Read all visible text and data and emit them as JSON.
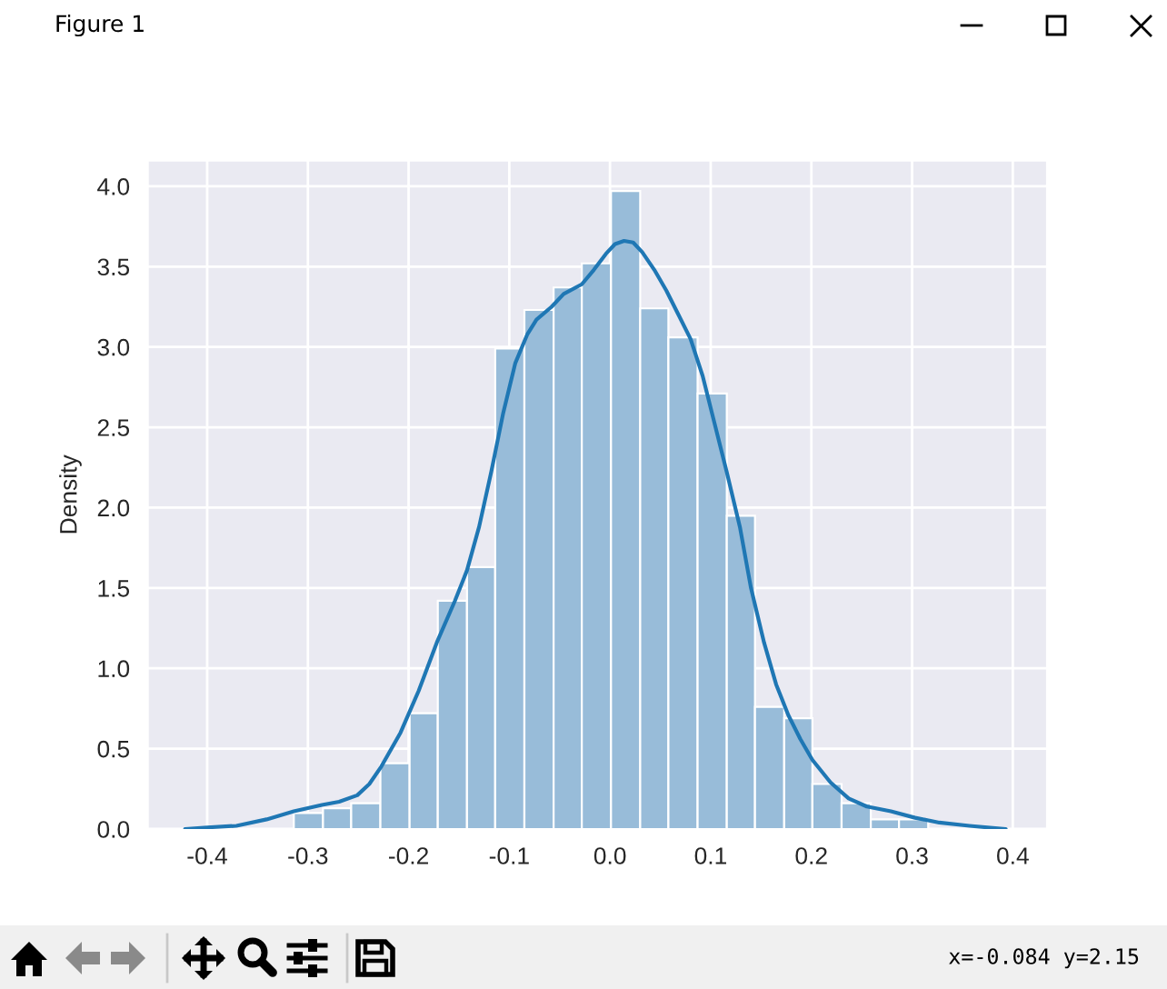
{
  "chart_data": {
    "type": "histogram",
    "ylabel": "Density",
    "bins": [
      -0.314,
      -0.285,
      -0.257,
      -0.228,
      -0.199,
      -0.171,
      -0.142,
      -0.114,
      -0.085,
      -0.056,
      -0.028,
      0.001,
      0.03,
      0.058,
      0.087,
      0.116,
      0.144,
      0.173,
      0.201,
      0.23,
      0.259,
      0.287,
      0.316
    ],
    "values": [
      0.1,
      0.13,
      0.16,
      0.41,
      0.72,
      1.42,
      1.63,
      2.99,
      3.23,
      3.37,
      3.52,
      3.97,
      3.24,
      3.06,
      2.71,
      1.95,
      0.76,
      0.69,
      0.28,
      0.16,
      0.06,
      0.06
    ],
    "color": "#98bcd9",
    "series": [
      {
        "type": "line",
        "color": "#1f77b4",
        "x": [
          -0.422,
          -0.4,
          -0.371,
          -0.341,
          -0.314,
          -0.286,
          -0.269,
          -0.251,
          -0.239,
          -0.227,
          -0.208,
          -0.19,
          -0.172,
          -0.154,
          -0.142,
          -0.13,
          -0.118,
          -0.106,
          -0.094,
          -0.082,
          -0.073,
          -0.058,
          -0.046,
          -0.028,
          -0.016,
          -0.004,
          0.005,
          0.014,
          0.023,
          0.032,
          0.044,
          0.056,
          0.068,
          0.08,
          0.092,
          0.104,
          0.116,
          0.129,
          0.14,
          0.153,
          0.165,
          0.177,
          0.189,
          0.201,
          0.219,
          0.237,
          0.255,
          0.279,
          0.303,
          0.327,
          0.357,
          0.393
        ],
        "values": [
          0.0,
          0.01,
          0.02,
          0.06,
          0.11,
          0.15,
          0.17,
          0.21,
          0.28,
          0.39,
          0.6,
          0.86,
          1.16,
          1.42,
          1.61,
          1.88,
          2.22,
          2.59,
          2.9,
          3.08,
          3.17,
          3.25,
          3.33,
          3.39,
          3.48,
          3.58,
          3.64,
          3.66,
          3.65,
          3.59,
          3.48,
          3.35,
          3.2,
          3.05,
          2.82,
          2.52,
          2.22,
          1.88,
          1.5,
          1.16,
          0.9,
          0.71,
          0.56,
          0.43,
          0.29,
          0.19,
          0.14,
          0.11,
          0.07,
          0.04,
          0.02,
          0.0
        ]
      }
    ],
    "xlim": [
      -0.459,
      0.434
    ],
    "ylim": [
      0,
      4.16
    ],
    "xticks": [
      -0.4,
      -0.3,
      -0.2,
      -0.1,
      {
        "value": 0,
        "label": "0.0"
      },
      0.1,
      0.2,
      0.3,
      0.4
    ],
    "yticks": [
      {
        "value": 0,
        "label": "0.0"
      },
      0.5,
      {
        "value": 1,
        "label": "1.0"
      },
      1.5,
      {
        "value": 2,
        "label": "2.0"
      },
      2.5,
      {
        "value": 3,
        "label": "3.0"
      },
      3.5,
      {
        "value": 4,
        "label": "4.0"
      }
    ],
    "grid": true,
    "annotations": [
      "Figure 1",
      "x=-0.084 y=2.15"
    ]
  }
}
